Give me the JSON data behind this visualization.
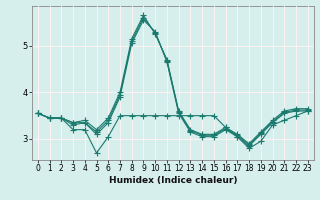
{
  "title": "",
  "xlabel": "Humidex (Indice chaleur)",
  "ylabel": "",
  "background_color": "#d6eeec",
  "grid_color_white": "#ffffff",
  "grid_color_red": "#f5a0a0",
  "line_color": "#1a7a6e",
  "xlim": [
    -0.5,
    23.5
  ],
  "ylim": [
    2.55,
    5.85
  ],
  "yticks": [
    3,
    4,
    5
  ],
  "xticks": [
    0,
    1,
    2,
    3,
    4,
    5,
    6,
    7,
    8,
    9,
    10,
    11,
    12,
    13,
    14,
    15,
    16,
    17,
    18,
    19,
    20,
    21,
    22,
    23
  ],
  "series": [
    [
      3.55,
      3.45,
      3.45,
      3.2,
      3.2,
      2.7,
      3.05,
      3.5,
      3.5,
      3.5,
      3.5,
      3.5,
      3.5,
      3.5,
      3.5,
      3.5,
      3.25,
      3.05,
      2.8,
      2.95,
      3.3,
      3.4,
      3.5,
      3.6
    ],
    [
      3.55,
      3.45,
      3.45,
      3.3,
      3.35,
      3.1,
      3.35,
      3.9,
      5.05,
      5.55,
      5.3,
      4.65,
      3.55,
      3.15,
      3.05,
      3.05,
      3.2,
      3.05,
      2.85,
      3.1,
      3.35,
      3.55,
      3.6,
      3.6
    ],
    [
      3.55,
      3.45,
      3.45,
      3.35,
      3.4,
      3.2,
      3.45,
      4.0,
      5.15,
      5.65,
      5.25,
      4.7,
      3.6,
      3.2,
      3.1,
      3.1,
      3.25,
      3.1,
      2.9,
      3.15,
      3.4,
      3.6,
      3.65,
      3.65
    ],
    [
      3.55,
      3.45,
      3.45,
      3.35,
      3.35,
      3.15,
      3.4,
      3.95,
      5.1,
      5.6,
      5.27,
      4.68,
      3.58,
      3.18,
      3.08,
      3.08,
      3.22,
      3.08,
      2.87,
      3.12,
      3.37,
      3.57,
      3.62,
      3.62
    ]
  ],
  "marker": "+",
  "marker_size": 4,
  "line_width": 0.8,
  "tick_fontsize": 5.5,
  "xlabel_fontsize": 6.5
}
